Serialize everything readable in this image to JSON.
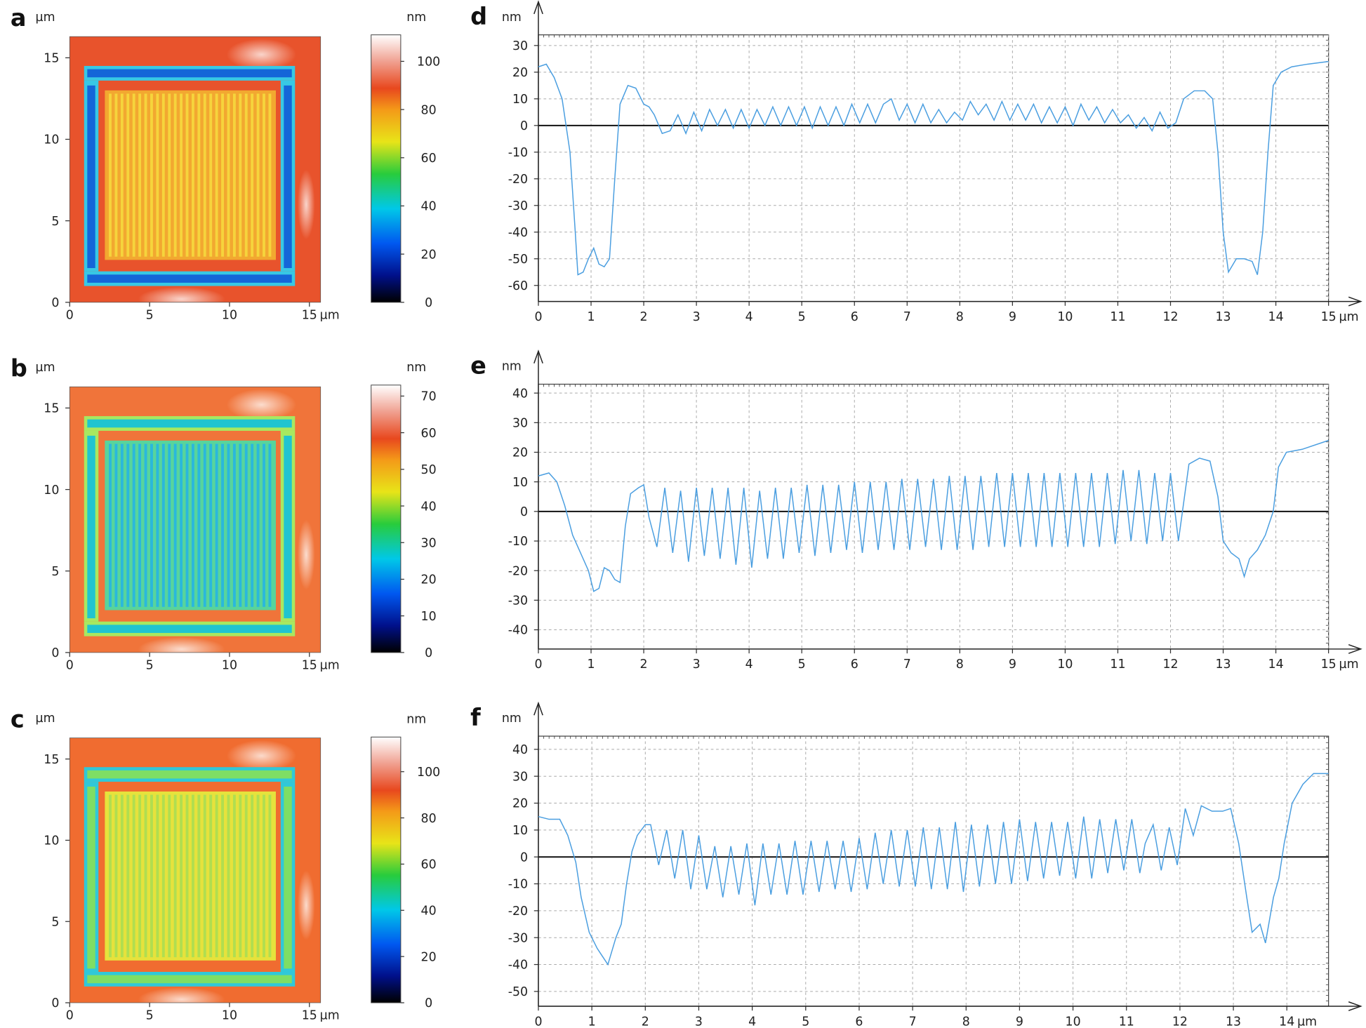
{
  "chart_data": [
    {
      "type": "heatmap",
      "panel_label": "a",
      "x_label": "µm",
      "y_label": "µm",
      "xlim": [
        0,
        15.7
      ],
      "xticks": [
        0,
        5,
        10,
        15
      ],
      "ylim": [
        0,
        16.3
      ],
      "yticks": [
        0,
        5,
        10,
        15
      ],
      "colorbar": {
        "label": "nm",
        "lim": [
          0,
          111
        ],
        "ticks": [
          0,
          20,
          40,
          60,
          80,
          100
        ]
      }
    },
    {
      "type": "line",
      "panel_label": "d",
      "x_label": "µm",
      "y_label": "nm",
      "xlim": [
        0,
        15
      ],
      "xticks": [
        0,
        1,
        2,
        3,
        4,
        5,
        6,
        7,
        8,
        9,
        10,
        11,
        12,
        13,
        14,
        15
      ],
      "ylim": [
        -66,
        34
      ],
      "yticks": [
        -60,
        -50,
        -40,
        -30,
        -20,
        -10,
        0,
        10,
        20,
        30
      ],
      "grid": true,
      "zero_line": true,
      "x": [
        0,
        0.15,
        0.3,
        0.45,
        0.6,
        0.7,
        0.75,
        0.85,
        0.95,
        1.05,
        1.15,
        1.25,
        1.35,
        1.45,
        1.55,
        1.7,
        1.85,
        2.0,
        2.1,
        2.2,
        2.35,
        2.5,
        2.65,
        2.8,
        2.95,
        3.1,
        3.25,
        3.4,
        3.55,
        3.7,
        3.85,
        4.0,
        4.15,
        4.3,
        4.45,
        4.6,
        4.75,
        4.9,
        5.05,
        5.2,
        5.35,
        5.5,
        5.65,
        5.8,
        5.95,
        6.1,
        6.25,
        6.4,
        6.55,
        6.7,
        6.85,
        7.0,
        7.15,
        7.3,
        7.45,
        7.6,
        7.75,
        7.9,
        8.05,
        8.2,
        8.35,
        8.5,
        8.65,
        8.8,
        8.95,
        9.1,
        9.25,
        9.4,
        9.55,
        9.7,
        9.85,
        10.0,
        10.15,
        10.3,
        10.45,
        10.6,
        10.75,
        10.9,
        11.05,
        11.2,
        11.35,
        11.5,
        11.65,
        11.8,
        11.95,
        12.1,
        12.25,
        12.45,
        12.65,
        12.8,
        12.9,
        13.0,
        13.1,
        13.25,
        13.4,
        13.55,
        13.65,
        13.75,
        13.85,
        13.95,
        14.1,
        14.3,
        14.6,
        15.0
      ],
      "series": [
        {
          "color": "#4a9ee0",
          "values": [
            22,
            23,
            18,
            10,
            -10,
            -40,
            -56,
            -55,
            -50,
            -46,
            -52,
            -53,
            -50,
            -20,
            8,
            15,
            14,
            8,
            7,
            4,
            -3,
            -2,
            4,
            -3,
            5,
            -2,
            6,
            0,
            6,
            -1,
            6,
            -1,
            6,
            0,
            7,
            0,
            7,
            0,
            7,
            -1,
            7,
            0,
            7,
            0,
            8,
            1,
            8,
            1,
            8,
            10,
            2,
            8,
            1,
            8,
            1,
            6,
            1,
            5,
            2,
            9,
            4,
            8,
            2,
            9,
            2,
            8,
            2,
            8,
            1,
            7,
            1,
            7,
            0,
            8,
            2,
            7,
            1,
            6,
            1,
            4,
            -1,
            3,
            -2,
            5,
            -1,
            1,
            10,
            13,
            13,
            10,
            -10,
            -40,
            -55,
            -50,
            -50,
            -51,
            -56,
            -40,
            -10,
            15,
            20,
            22,
            23,
            24
          ]
        }
      ]
    },
    {
      "type": "heatmap",
      "panel_label": "b",
      "x_label": "µm",
      "y_label": "µm",
      "xlim": [
        0,
        15.7
      ],
      "xticks": [
        0,
        5,
        10,
        15
      ],
      "ylim": [
        0,
        16.3
      ],
      "yticks": [
        0,
        5,
        10,
        15
      ],
      "colorbar": {
        "label": "nm",
        "lim": [
          0,
          73
        ],
        "ticks": [
          0,
          10,
          20,
          30,
          40,
          50,
          60,
          70
        ]
      }
    },
    {
      "type": "line",
      "panel_label": "e",
      "x_label": "µm",
      "y_label": "nm",
      "xlim": [
        0,
        15
      ],
      "xticks": [
        0,
        1,
        2,
        3,
        4,
        5,
        6,
        7,
        8,
        9,
        10,
        11,
        12,
        13,
        14,
        15
      ],
      "ylim": [
        -46.5,
        43
      ],
      "yticks": [
        -40,
        -30,
        -20,
        -10,
        0,
        10,
        20,
        30,
        40
      ],
      "grid": true,
      "zero_line": true,
      "x": [
        0,
        0.2,
        0.35,
        0.5,
        0.65,
        0.8,
        0.95,
        1.05,
        1.15,
        1.25,
        1.35,
        1.45,
        1.55,
        1.65,
        1.75,
        1.9,
        2.0,
        2.1,
        2.25,
        2.4,
        2.55,
        2.7,
        2.85,
        3.0,
        3.15,
        3.3,
        3.45,
        3.6,
        3.75,
        3.9,
        4.05,
        4.2,
        4.35,
        4.5,
        4.65,
        4.8,
        4.95,
        5.1,
        5.25,
        5.4,
        5.55,
        5.7,
        5.85,
        6.0,
        6.15,
        6.3,
        6.45,
        6.6,
        6.75,
        6.9,
        7.05,
        7.2,
        7.35,
        7.5,
        7.65,
        7.8,
        7.95,
        8.1,
        8.25,
        8.4,
        8.55,
        8.7,
        8.85,
        9.0,
        9.15,
        9.3,
        9.45,
        9.6,
        9.75,
        9.9,
        10.05,
        10.2,
        10.35,
        10.5,
        10.65,
        10.8,
        10.95,
        11.1,
        11.25,
        11.4,
        11.55,
        11.7,
        11.85,
        12.0,
        12.15,
        12.35,
        12.55,
        12.75,
        12.9,
        13.0,
        13.15,
        13.3,
        13.4,
        13.5,
        13.65,
        13.8,
        13.95,
        14.05,
        14.2,
        14.5,
        15.0
      ],
      "series": [
        {
          "color": "#4a9ee0",
          "values": [
            12,
            13,
            10,
            2,
            -8,
            -14,
            -20,
            -27,
            -26,
            -19,
            -20,
            -23,
            -24,
            -5,
            6,
            8,
            9,
            -2,
            -12,
            8,
            -14,
            7,
            -17,
            8,
            -15,
            8,
            -16,
            8,
            -18,
            8,
            -19,
            7,
            -16,
            8,
            -16,
            8,
            -14,
            9,
            -15,
            9,
            -14,
            9,
            -13,
            10,
            -14,
            10,
            -13,
            10,
            -13,
            11,
            -13,
            11,
            -12,
            11,
            -13,
            12,
            -13,
            12,
            -13,
            12,
            -12,
            13,
            -12,
            13,
            -12,
            13,
            -12,
            13,
            -12,
            13,
            -12,
            13,
            -12,
            13,
            -12,
            13,
            -11,
            14,
            -10,
            14,
            -11,
            13,
            -10,
            13,
            -10,
            16,
            18,
            17,
            5,
            -10,
            -14,
            -16,
            -22,
            -16,
            -13,
            -8,
            0,
            15,
            20,
            21,
            24
          ]
        }
      ]
    },
    {
      "type": "heatmap",
      "panel_label": "c",
      "x_label": "µm",
      "y_label": "µm",
      "xlim": [
        0,
        15.7
      ],
      "xticks": [
        0,
        5,
        10,
        15
      ],
      "ylim": [
        0,
        16.3
      ],
      "yticks": [
        0,
        5,
        10,
        15
      ],
      "colorbar": {
        "label": "nm",
        "lim": [
          0,
          115
        ],
        "ticks": [
          0,
          20,
          40,
          60,
          80,
          100
        ]
      }
    },
    {
      "type": "line",
      "panel_label": "f",
      "x_label": "µm",
      "y_label": "nm",
      "xlim": [
        0,
        14.78
      ],
      "xticks": [
        0,
        1,
        2,
        3,
        4,
        5,
        6,
        7,
        8,
        9,
        10,
        11,
        12,
        13,
        14
      ],
      "ylim": [
        -55.5,
        44.9
      ],
      "yticks": [
        -50,
        -40,
        -30,
        -20,
        -10,
        0,
        10,
        20,
        30,
        40
      ],
      "grid": true,
      "zero_line": true,
      "x": [
        0,
        0.2,
        0.4,
        0.55,
        0.7,
        0.8,
        0.95,
        1.1,
        1.2,
        1.3,
        1.45,
        1.55,
        1.65,
        1.75,
        1.85,
        2.0,
        2.1,
        2.25,
        2.4,
        2.55,
        2.7,
        2.85,
        3.0,
        3.15,
        3.3,
        3.45,
        3.6,
        3.75,
        3.9,
        4.05,
        4.2,
        4.35,
        4.5,
        4.65,
        4.8,
        4.95,
        5.1,
        5.25,
        5.4,
        5.55,
        5.7,
        5.85,
        6.0,
        6.15,
        6.3,
        6.45,
        6.6,
        6.75,
        6.9,
        7.05,
        7.2,
        7.35,
        7.5,
        7.65,
        7.8,
        7.95,
        8.1,
        8.25,
        8.4,
        8.55,
        8.7,
        8.85,
        9.0,
        9.15,
        9.3,
        9.45,
        9.6,
        9.75,
        9.9,
        10.05,
        10.2,
        10.35,
        10.5,
        10.65,
        10.8,
        10.95,
        11.1,
        11.25,
        11.35,
        11.5,
        11.65,
        11.8,
        11.95,
        12.1,
        12.25,
        12.4,
        12.6,
        12.8,
        12.95,
        13.1,
        13.25,
        13.35,
        13.5,
        13.6,
        13.75,
        13.85,
        13.95,
        14.1,
        14.3,
        14.5,
        14.78
      ],
      "series": [
        {
          "color": "#4a9ee0",
          "values": [
            15,
            14,
            14,
            8,
            -2,
            -15,
            -28,
            -34,
            -37,
            -40,
            -30,
            -25,
            -10,
            2,
            8,
            12,
            12,
            -3,
            10,
            -8,
            10,
            -12,
            8,
            -12,
            4,
            -15,
            4,
            -14,
            5,
            -18,
            5,
            -14,
            5,
            -14,
            6,
            -14,
            6,
            -13,
            6,
            -12,
            6,
            -13,
            7,
            -12,
            9,
            -10,
            10,
            -11,
            10,
            -11,
            11,
            -12,
            11,
            -12,
            13,
            -13,
            12,
            -11,
            12,
            -10,
            13,
            -10,
            14,
            -9,
            13,
            -8,
            13,
            -7,
            13,
            -8,
            15,
            -8,
            14,
            -6,
            14,
            -5,
            14,
            -6,
            5,
            12,
            -5,
            11,
            -3,
            18,
            8,
            19,
            17,
            17,
            18,
            5,
            -15,
            -28,
            -25,
            -32,
            -15,
            -8,
            5,
            20,
            27,
            31,
            31
          ]
        }
      ]
    }
  ]
}
